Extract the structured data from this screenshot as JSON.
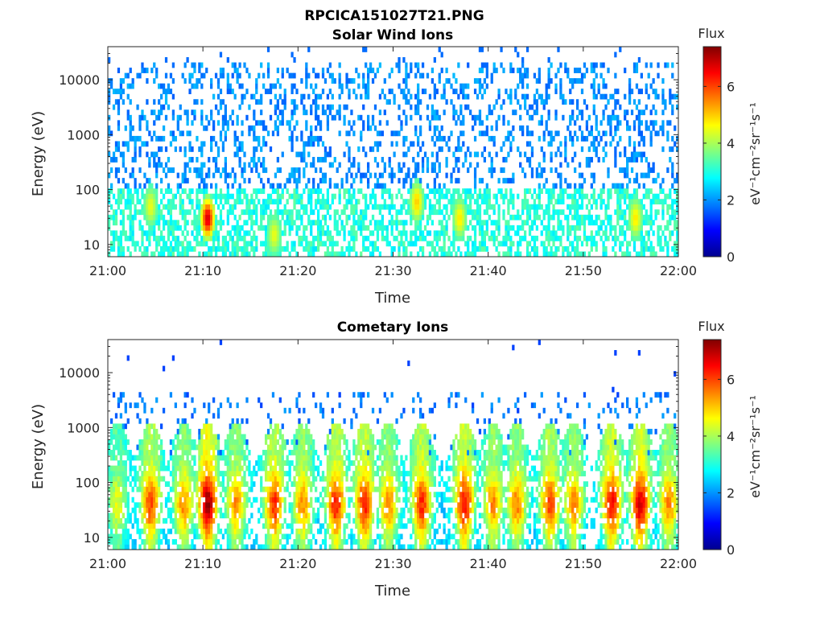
{
  "figure": {
    "title": "RPCICA151027T21.PNG"
  },
  "chart_data": [
    {
      "type": "heatmap",
      "title": "Solar Wind Ions",
      "xlabel": "Time",
      "ylabel": "Energy (eV)",
      "x_tick_labels": [
        "21:00",
        "21:10",
        "21:20",
        "21:30",
        "21:40",
        "21:50",
        "22:00"
      ],
      "x_range_minutes": [
        0,
        60
      ],
      "y_scale": "log",
      "y_range": [
        6,
        40000
      ],
      "y_tick_labels": [
        "10",
        "100",
        "1000",
        "10000"
      ],
      "y_tick_values": [
        10,
        100,
        1000,
        10000
      ],
      "colorbar": {
        "title": "Flux",
        "label": "eV⁻¹cm⁻²sr⁻¹s⁻¹",
        "range": [
          0,
          7.4
        ],
        "tick_labels": [
          "0",
          "2",
          "4",
          "6"
        ],
        "tick_values": [
          0,
          2,
          4,
          6
        ],
        "colormap": "jet"
      },
      "features": {
        "background_low_energy_flux": "2.5-3.5 below ~100 eV, ~2 from 100 eV to 20 keV",
        "hotspots": [
          {
            "time_min": 10.5,
            "energy_eV": 30,
            "flux": 6.8
          },
          {
            "time_min": 32.5,
            "energy_eV": 60,
            "flux": 5.0
          },
          {
            "time_min": 4.5,
            "energy_eV": 50,
            "flux": 4.5
          },
          {
            "time_min": 17.5,
            "energy_eV": 15,
            "flux": 4.5
          },
          {
            "time_min": 37.0,
            "energy_eV": 30,
            "flux": 4.8
          },
          {
            "time_min": 55.5,
            "energy_eV": 30,
            "flux": 4.8
          }
        ]
      }
    },
    {
      "type": "heatmap",
      "title": "Cometary Ions",
      "xlabel": "Time",
      "ylabel": "Energy (eV)",
      "x_tick_labels": [
        "21:00",
        "21:10",
        "21:20",
        "21:30",
        "21:40",
        "21:50",
        "22:00"
      ],
      "x_range_minutes": [
        0,
        60
      ],
      "y_scale": "log",
      "y_range": [
        6,
        40000
      ],
      "y_tick_labels": [
        "10",
        "100",
        "1000",
        "10000"
      ],
      "y_tick_values": [
        10,
        100,
        1000,
        10000
      ],
      "colorbar": {
        "title": "Flux",
        "label": "eV⁻¹cm⁻²sr⁻¹s⁻¹",
        "range": [
          0,
          7.4
        ],
        "tick_labels": [
          "0",
          "2",
          "4",
          "6"
        ],
        "tick_values": [
          0,
          2,
          4,
          6
        ],
        "colormap": "jet"
      },
      "features": {
        "bursts": [
          {
            "time_min": 1.0,
            "flux": 4.5
          },
          {
            "time_min": 4.5,
            "flux": 6.0
          },
          {
            "time_min": 8.0,
            "flux": 5.5
          },
          {
            "time_min": 10.5,
            "flux": 7.2
          },
          {
            "time_min": 13.5,
            "flux": 5.5
          },
          {
            "time_min": 17.5,
            "flux": 6.2
          },
          {
            "time_min": 20.5,
            "flux": 5.5
          },
          {
            "time_min": 24.0,
            "flux": 6.3
          },
          {
            "time_min": 27.0,
            "flux": 6.3
          },
          {
            "time_min": 29.5,
            "flux": 5.5
          },
          {
            "time_min": 33.0,
            "flux": 6.2
          },
          {
            "time_min": 37.5,
            "flux": 6.5
          },
          {
            "time_min": 40.5,
            "flux": 5.5
          },
          {
            "time_min": 43.0,
            "flux": 5.5
          },
          {
            "time_min": 46.5,
            "flux": 6.0
          },
          {
            "time_min": 49.0,
            "flux": 5.5
          },
          {
            "time_min": 53.0,
            "flux": 6.5
          },
          {
            "time_min": 56.0,
            "flux": 6.8
          },
          {
            "time_min": 59.0,
            "flux": 5.5
          }
        ]
      }
    }
  ]
}
